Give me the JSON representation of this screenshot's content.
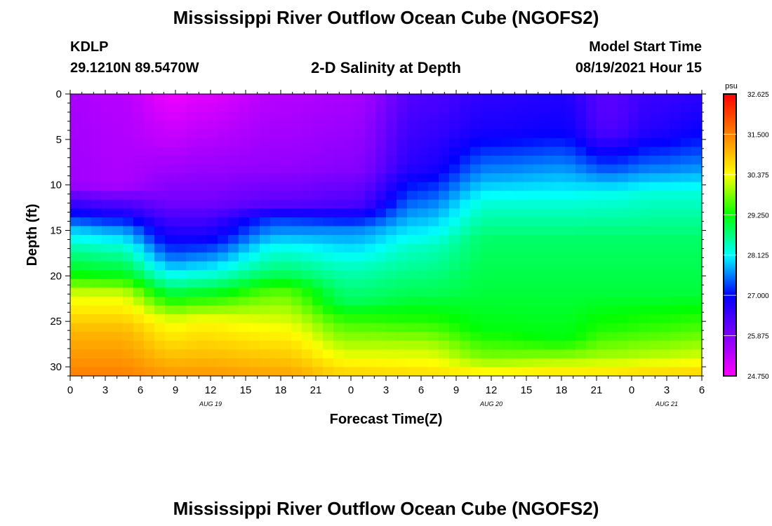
{
  "header": {
    "title": "Mississippi River Outflow Ocean Cube (NGOFS2)",
    "station": "KDLP",
    "coords": "29.1210N  89.5470W",
    "plot_title": "2-D Salinity at Depth",
    "start_label": "Model Start Time",
    "start_time": "08/19/2021 Hour 15"
  },
  "footer": {
    "title": "Mississippi River Outflow Ocean Cube (NGOFS2)"
  },
  "chart_data": {
    "type": "heatmap",
    "title": "2-D Salinity at Depth",
    "xlabel": "Forecast Time(Z)",
    "ylabel": "Depth (ft)",
    "x_tick_labels": [
      "0",
      "3",
      "6",
      "9",
      "12",
      "15",
      "18",
      "21",
      "0",
      "3",
      "6",
      "9",
      "12",
      "15",
      "18",
      "21",
      "0",
      "3",
      "6"
    ],
    "x_range_hours": [
      0,
      54
    ],
    "x_tick_step_hours": 3,
    "date_labels": [
      {
        "label": "AUG  19",
        "hour": 12
      },
      {
        "label": "AUG  20",
        "hour": 36
      },
      {
        "label": "AUG  21",
        "hour": 51
      }
    ],
    "y_ticks": [
      0,
      5,
      10,
      15,
      20,
      25,
      30
    ],
    "y_range": [
      0,
      31
    ],
    "y_inverted": true,
    "colorbar": {
      "unit": "psu",
      "min": 24.75,
      "max": 32.625,
      "labels": [
        "32.625",
        "31.500",
        "30.375",
        "29.250",
        "28.125",
        "27.000",
        "25.875",
        "24.750"
      ],
      "colors": [
        "#ff00ff",
        "#8000ff",
        "#0000ff",
        "#00ffff",
        "#00ff00",
        "#ffff00",
        "#ff8000",
        "#ff0000"
      ]
    },
    "profiles": [
      {
        "hour": 0,
        "depths": [
          0,
          10,
          13,
          15,
          17,
          20,
          22,
          26,
          31
        ],
        "values": [
          25.5,
          25.6,
          26.9,
          27.9,
          28.5,
          29.3,
          30.2,
          31.0,
          31.5
        ]
      },
      {
        "hour": 4,
        "depths": [
          0,
          10,
          13,
          15,
          17,
          20,
          22,
          26,
          31
        ],
        "values": [
          25.4,
          25.5,
          26.7,
          27.7,
          28.4,
          29.2,
          30.2,
          31.0,
          31.5
        ]
      },
      {
        "hour": 9,
        "depths": [
          0,
          5,
          12,
          16,
          18,
          21,
          23,
          25,
          31
        ],
        "values": [
          24.9,
          25.3,
          26.0,
          26.9,
          27.5,
          28.6,
          29.5,
          30.3,
          31.3
        ]
      },
      {
        "hour": 11,
        "depths": [
          0,
          5,
          12,
          16,
          18,
          21,
          23,
          25,
          31
        ],
        "values": [
          25.0,
          25.4,
          26.0,
          26.9,
          27.6,
          28.7,
          29.6,
          30.4,
          31.3
        ]
      },
      {
        "hour": 18,
        "depths": [
          0,
          8,
          12,
          14,
          17,
          20,
          22,
          26,
          31
        ],
        "values": [
          25.4,
          25.7,
          26.2,
          27.3,
          28.2,
          28.9,
          29.7,
          30.4,
          31.2
        ]
      },
      {
        "hour": 24,
        "depths": [
          0,
          8,
          12,
          15,
          19,
          23,
          25,
          28,
          31
        ],
        "values": [
          25.5,
          25.8,
          26.3,
          27.6,
          28.4,
          28.9,
          29.5,
          30.1,
          30.8
        ]
      },
      {
        "hour": 30,
        "depths": [
          0,
          4,
          8,
          12,
          17,
          22,
          25,
          28,
          31
        ],
        "values": [
          26.3,
          26.5,
          26.7,
          27.5,
          28.4,
          28.9,
          29.4,
          30.1,
          30.7
        ]
      },
      {
        "hour": 36,
        "depths": [
          0,
          4,
          9,
          12,
          16,
          22,
          26,
          29,
          31
        ],
        "values": [
          26.6,
          26.8,
          27.7,
          28.3,
          28.8,
          29.0,
          29.2,
          29.8,
          30.6
        ]
      },
      {
        "hour": 42,
        "depths": [
          0,
          4,
          9,
          12,
          16,
          22,
          27,
          29,
          31
        ],
        "values": [
          26.7,
          26.9,
          27.8,
          28.3,
          28.8,
          29.0,
          29.2,
          29.9,
          30.7
        ]
      },
      {
        "hour": 46,
        "depths": [
          0,
          4,
          8,
          11,
          16,
          22,
          26,
          29,
          31
        ],
        "values": [
          26.2,
          26.3,
          27.3,
          28.2,
          28.8,
          29.0,
          29.4,
          30.0,
          30.7
        ]
      },
      {
        "hour": 50,
        "depths": [
          0,
          4,
          8,
          11,
          16,
          22,
          26,
          29,
          31
        ],
        "values": [
          26.5,
          26.7,
          27.5,
          28.3,
          28.8,
          29.0,
          29.5,
          30.1,
          30.8
        ]
      },
      {
        "hour": 54,
        "depths": [
          0,
          4,
          8,
          11,
          16,
          22,
          26,
          29,
          31
        ],
        "values": [
          26.6,
          26.9,
          27.6,
          28.3,
          28.8,
          29.0,
          29.6,
          30.2,
          30.8
        ]
      }
    ]
  }
}
